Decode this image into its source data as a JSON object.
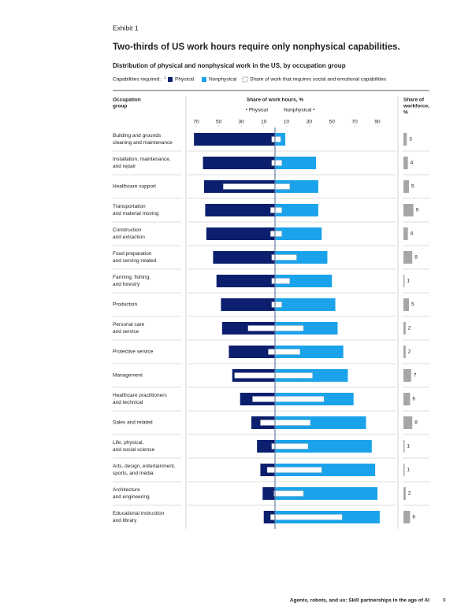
{
  "page": {
    "exhibit": "Exhibit 1",
    "footer": "Agents, robots, and us: Skill partnerships in the age of AI",
    "page_number": "9"
  },
  "chart_data": {
    "type": "diverging-bar",
    "title": "Two-thirds of US work hours require only nonphysical capabilities.",
    "subtitle": "Distribution of physical and nonphysical work in the US, by occupation group",
    "legend_label": "Capabilities required:",
    "legend_footnote": "1",
    "column_headers": {
      "group": [
        "Occupation",
        "group"
      ],
      "hours": "Share of work hours, %",
      "physical": "• Physical",
      "nonphysical": "Nonphysical •",
      "workforce": [
        "Share of",
        "workforce,",
        "%"
      ]
    },
    "categories": [
      [
        "Building and grounds",
        "cleaning and maintenance"
      ],
      [
        "Installation, maintenance,",
        "and repair"
      ],
      [
        "Healthcare support"
      ],
      [
        "Transportation",
        "and material moving"
      ],
      [
        "Construction",
        "and extraction"
      ],
      [
        "Food preparation",
        "and serving related"
      ],
      [
        "Farming, fishing,",
        "and forestry"
      ],
      [
        "Production"
      ],
      [
        "Personal care",
        "and service"
      ],
      [
        "Protective service"
      ],
      [
        "Management"
      ],
      [
        "Healthcare practitioners",
        "and technical"
      ],
      [
        "Sales and related"
      ],
      [
        "Life, physical,",
        "and social science"
      ],
      [
        "Arts, design, entertainment,",
        "sports, and media"
      ],
      [
        "Architecture",
        "and engineering"
      ],
      [
        "Educational instruction",
        "and library"
      ]
    ],
    "series": [
      {
        "name": "Physical",
        "color": "#0b1f6e",
        "values": [
          72,
          64,
          63,
          62,
          61,
          55,
          52,
          48,
          47,
          41,
          38,
          31,
          21,
          16,
          13,
          11,
          10
        ]
      },
      {
        "name": "Nonphysical",
        "color": "#1aa3ea",
        "values": [
          9,
          36,
          38,
          38,
          41,
          46,
          50,
          53,
          55,
          60,
          64,
          69,
          80,
          85,
          88,
          90,
          92
        ]
      },
      {
        "name": "Share of work that requires social and emotional capabilities",
        "color": "#ffffff",
        "values_physical": [
          3,
          3,
          46,
          4,
          4,
          3,
          3,
          3,
          24,
          6,
          36,
          20,
          13,
          3,
          7,
          1,
          4
        ],
        "values_nonphysical": [
          5,
          6,
          13,
          6,
          6,
          19,
          13,
          6,
          25,
          22,
          33,
          43,
          31,
          29,
          41,
          25,
          59
        ]
      }
    ],
    "xlim_physical": [
      0,
      70
    ],
    "xticks_physical": [
      70,
      50,
      30,
      10
    ],
    "xlim_nonphysical": [
      0,
      90
    ],
    "xticks_nonphysical": [
      10,
      30,
      50,
      70,
      90
    ],
    "workforce": {
      "color": "#a6a6a6",
      "values": [
        3,
        4,
        5,
        9,
        4,
        8,
        1,
        5,
        2,
        2,
        7,
        6,
        8,
        1,
        1,
        2,
        6
      ],
      "xlim": [
        0,
        10
      ]
    }
  }
}
